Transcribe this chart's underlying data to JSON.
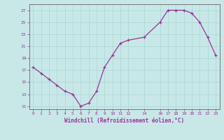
{
  "x": [
    0,
    1,
    2,
    3,
    4,
    5,
    6,
    7,
    8,
    9,
    10,
    11,
    12,
    14,
    16,
    17,
    18,
    19,
    20,
    21,
    22,
    23
  ],
  "y": [
    17.5,
    16.5,
    15.5,
    14.5,
    13.5,
    13.0,
    11.0,
    11.5,
    13.5,
    17.5,
    19.5,
    21.5,
    22.0,
    22.5,
    25.0,
    27.0,
    27.0,
    27.0,
    26.5,
    25.0,
    22.5,
    19.5
  ],
  "xticks": [
    0,
    1,
    2,
    3,
    4,
    5,
    6,
    7,
    8,
    9,
    10,
    11,
    12,
    14,
    16,
    17,
    18,
    19,
    20,
    21,
    22,
    23
  ],
  "yticks": [
    11,
    13,
    15,
    17,
    19,
    21,
    23,
    25,
    27
  ],
  "xlabel": "Windchill (Refroidissement éolien,°C)",
  "line_color": "#993399",
  "marker_color": "#993399",
  "bg_color": "#c8e8e8",
  "grid_color": "#aad4d4",
  "plot_bg": "#c8e8e8",
  "spine_color": "#666666",
  "xlim": [
    -0.5,
    23.5
  ],
  "ylim": [
    10.5,
    28.0
  ],
  "figsize": [
    3.2,
    2.0
  ],
  "dpi": 100
}
